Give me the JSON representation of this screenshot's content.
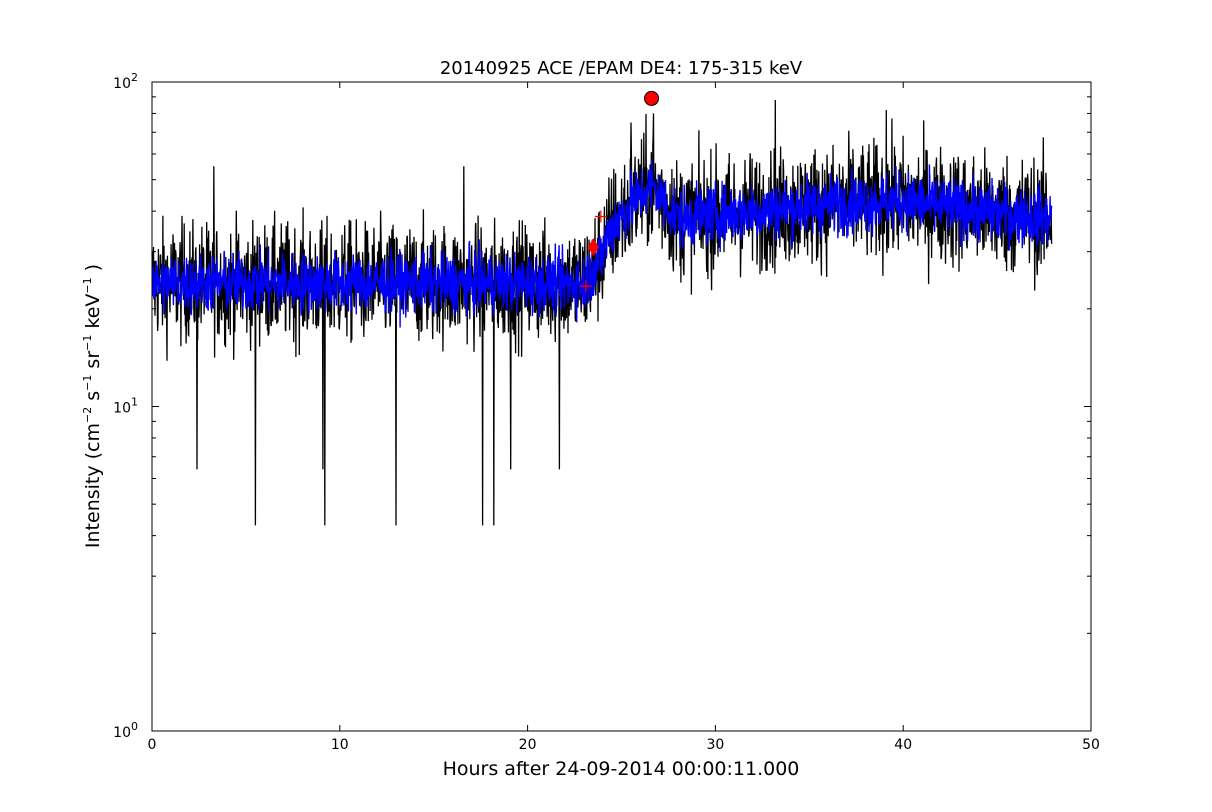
{
  "chart_data": {
    "type": "line",
    "title": "20140925 ACE /EPAM DE4: 175-315 keV",
    "xlabel": "Hours after 24-09-2014 00:00:11.000",
    "ylabel": {
      "prefix": "Intensity (cm",
      "exp1": "−2",
      "mid1": " s",
      "exp2": "−1",
      "mid2": " sr",
      "exp3": "−1",
      "mid3": " keV",
      "exp4": "−1",
      "suffix": " )"
    },
    "xlim": [
      0,
      50
    ],
    "ylim": [
      1,
      100
    ],
    "yscale": "log",
    "grid": false,
    "x_ticks": [
      "0",
      "10",
      "20",
      "30",
      "40",
      "50"
    ],
    "x_tick_values": [
      0,
      10,
      20,
      30,
      40,
      50
    ],
    "y_ticks": [
      {
        "value": 1,
        "base": "10",
        "exp": "0"
      },
      {
        "value": 10,
        "base": "10",
        "exp": "1"
      },
      {
        "value": 100,
        "base": "10",
        "exp": "2"
      }
    ],
    "series": [
      {
        "role": "raw intensity",
        "color": "#000000",
        "x_range": [
          0,
          47.9
        ],
        "profile": [
          {
            "x": 0,
            "y": 24
          },
          {
            "x": 10,
            "y": 24
          },
          {
            "x": 20,
            "y": 24
          },
          {
            "x": 23.0,
            "y": 24
          },
          {
            "x": 23.8,
            "y": 28
          },
          {
            "x": 24.5,
            "y": 36
          },
          {
            "x": 25.5,
            "y": 42
          },
          {
            "x": 26.6,
            "y": 48
          },
          {
            "x": 28,
            "y": 38
          },
          {
            "x": 32,
            "y": 40
          },
          {
            "x": 36,
            "y": 42
          },
          {
            "x": 40,
            "y": 43
          },
          {
            "x": 44,
            "y": 40
          },
          {
            "x": 47.9,
            "y": 38
          }
        ],
        "spread_decades": 0.18,
        "min_dips": [
          {
            "x": 5.5,
            "y": 4.3
          },
          {
            "x": 9.2,
            "y": 4.3
          },
          {
            "x": 13.0,
            "y": 4.3
          },
          {
            "x": 17.6,
            "y": 4.3
          },
          {
            "x": 18.2,
            "y": 4.3
          },
          {
            "x": 2.4,
            "y": 6.4
          },
          {
            "x": 9.1,
            "y": 6.4
          },
          {
            "x": 19.1,
            "y": 6.4
          },
          {
            "x": 21.7,
            "y": 6.4
          }
        ],
        "max_spikes": [
          {
            "x": 3.3,
            "y": 55
          },
          {
            "x": 16.6,
            "y": 55
          },
          {
            "x": 25.5,
            "y": 75
          },
          {
            "x": 26.7,
            "y": 80
          },
          {
            "x": 33.2,
            "y": 88
          },
          {
            "x": 39.1,
            "y": 82
          }
        ]
      },
      {
        "role": "smoothed intensity",
        "color": "#0000ff",
        "x_range": [
          0,
          47.9
        ],
        "spread_decades": 0.09
      }
    ],
    "markers": [
      {
        "shape": "plus",
        "x": 23.1,
        "y": 23.5,
        "color": "#ff0000"
      },
      {
        "shape": "diamond",
        "x": 23.5,
        "y": 31,
        "color": "#ff0000"
      },
      {
        "shape": "plus",
        "x": 23.9,
        "y": 38.5,
        "color": "#ff0000"
      },
      {
        "shape": "circle",
        "x": 26.6,
        "y": 89,
        "color": "#ff0000"
      }
    ]
  }
}
